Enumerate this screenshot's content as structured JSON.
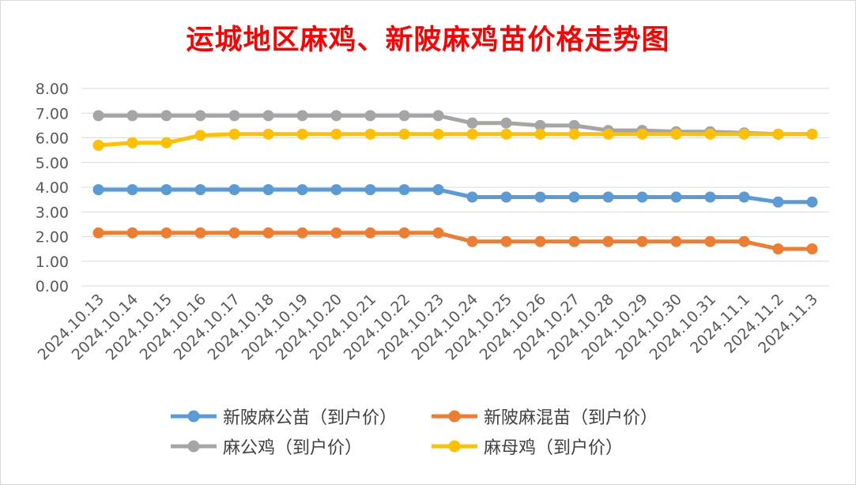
{
  "chart_data": {
    "type": "line",
    "title": "运城地区麻鸡、新陂麻鸡苗价格走势图",
    "xlabel": "",
    "ylabel": "",
    "ylim": [
      0,
      8
    ],
    "yticks": [
      "0.00",
      "1.00",
      "2.00",
      "3.00",
      "4.00",
      "5.00",
      "6.00",
      "7.00",
      "8.00"
    ],
    "grid": "horizontal",
    "legend_position": "bottom",
    "categories": [
      "2024.10.13",
      "2024.10.14",
      "2024.10.15",
      "2024.10.16",
      "2024.10.17",
      "2024.10.18",
      "2024.10.19",
      "2024.10.20",
      "2024.10.21",
      "2024.10.22",
      "2024.10.23",
      "2024.10.24",
      "2024.10.25",
      "2024.10.26",
      "2024.10.27",
      "2024.10.28",
      "2024.10.29",
      "2024.10.30",
      "2024.10.31",
      "2024.11.1",
      "2024.11.2",
      "2024.11.3"
    ],
    "series": [
      {
        "name": "新陂麻公苗（到户价）",
        "color": "#5b9bd5",
        "values": [
          3.9,
          3.9,
          3.9,
          3.9,
          3.9,
          3.9,
          3.9,
          3.9,
          3.9,
          3.9,
          3.9,
          3.6,
          3.6,
          3.6,
          3.6,
          3.6,
          3.6,
          3.6,
          3.6,
          3.6,
          3.4,
          3.4
        ]
      },
      {
        "name": "新陂麻混苗（到户价）",
        "color": "#ed7d31",
        "values": [
          2.15,
          2.15,
          2.15,
          2.15,
          2.15,
          2.15,
          2.15,
          2.15,
          2.15,
          2.15,
          2.15,
          1.8,
          1.8,
          1.8,
          1.8,
          1.8,
          1.8,
          1.8,
          1.8,
          1.8,
          1.5,
          1.5
        ]
      },
      {
        "name": "麻公鸡（到户价）",
        "color": "#a5a5a5",
        "values": [
          6.9,
          6.9,
          6.9,
          6.9,
          6.9,
          6.9,
          6.9,
          6.9,
          6.9,
          6.9,
          6.9,
          6.6,
          6.6,
          6.5,
          6.5,
          6.3,
          6.3,
          6.25,
          6.25,
          6.2,
          6.15,
          6.15
        ]
      },
      {
        "name": "麻母鸡（到户价）",
        "color": "#ffc000",
        "values": [
          5.7,
          5.8,
          5.8,
          6.1,
          6.15,
          6.15,
          6.15,
          6.15,
          6.15,
          6.15,
          6.15,
          6.15,
          6.15,
          6.15,
          6.15,
          6.15,
          6.15,
          6.15,
          6.15,
          6.15,
          6.15,
          6.15
        ]
      }
    ]
  }
}
